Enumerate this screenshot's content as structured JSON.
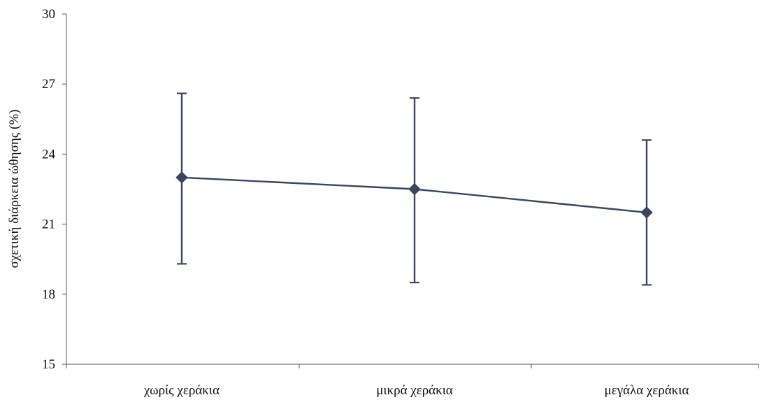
{
  "chart_data": {
    "type": "line",
    "categories": [
      "χωρίς χεράκια",
      "μικρά χεράκια",
      "μεγάλα χεράκια"
    ],
    "series": [
      {
        "values": [
          23.0,
          22.5,
          21.5
        ],
        "error_low": [
          19.3,
          18.5,
          18.4
        ],
        "error_high": [
          26.6,
          26.4,
          24.6
        ]
      }
    ],
    "ylabel": "σχετική διάρκεια ώθησης (%)",
    "xlabel": "",
    "ylim": [
      15,
      30
    ],
    "yticks": [
      15,
      18,
      21,
      24,
      27,
      30
    ],
    "grid": false,
    "line_color": "#3a4560",
    "marker": "diamond"
  }
}
